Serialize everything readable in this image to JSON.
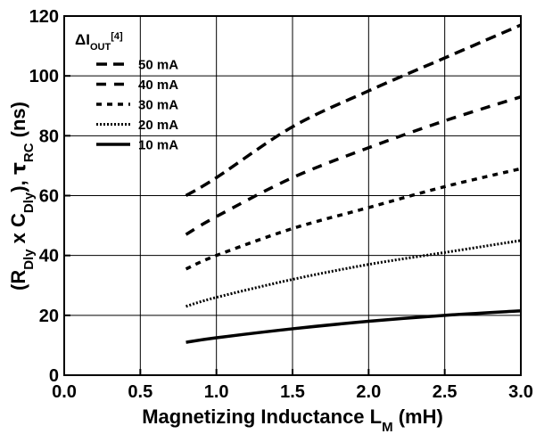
{
  "chart_data": {
    "type": "line",
    "xlabel": "Magnetizing Inductance L",
    "xlabel_sub": "M",
    "xlabel_suffix": " (mH)",
    "ylabel_parts": [
      "(R",
      "Dly",
      " x C",
      "Dly",
      "), ",
      "τ",
      "RC",
      " (ns)"
    ],
    "xlim": [
      0.0,
      3.0
    ],
    "ylim": [
      0,
      120
    ],
    "xticks": [
      "0.0",
      "0.5",
      "1.0",
      "1.5",
      "2.0",
      "2.5",
      "3.0"
    ],
    "yticks": [
      "0",
      "20",
      "40",
      "60",
      "80",
      "100",
      "120"
    ],
    "grid": true,
    "legend_position": "top-left",
    "legend_title_parts": [
      "ΔI",
      "OUT",
      "[4]"
    ],
    "series": [
      {
        "name": "50 mA",
        "dash": "long-dash",
        "x": [
          0.8,
          1.0,
          1.5,
          2.0,
          2.5,
          3.0
        ],
        "y": [
          60,
          66,
          83,
          95,
          106,
          117
        ]
      },
      {
        "name": "40 mA",
        "dash": "dash",
        "x": [
          0.8,
          1.0,
          1.5,
          2.0,
          2.5,
          3.0
        ],
        "y": [
          47,
          53,
          66,
          76,
          85,
          93
        ]
      },
      {
        "name": "30 mA",
        "dash": "short-dash",
        "x": [
          0.8,
          1.0,
          1.5,
          2.0,
          2.5,
          3.0
        ],
        "y": [
          35.5,
          40,
          49,
          56,
          63,
          69
        ]
      },
      {
        "name": "20 mA",
        "dash": "dotted",
        "x": [
          0.8,
          1.0,
          1.5,
          2.0,
          2.5,
          3.0
        ],
        "y": [
          23,
          26,
          32,
          37,
          41,
          45
        ]
      },
      {
        "name": "10 mA",
        "dash": "solid",
        "x": [
          0.8,
          1.0,
          1.5,
          2.0,
          2.5,
          3.0
        ],
        "y": [
          11,
          12.5,
          15.5,
          18,
          20,
          21.5
        ]
      }
    ]
  }
}
